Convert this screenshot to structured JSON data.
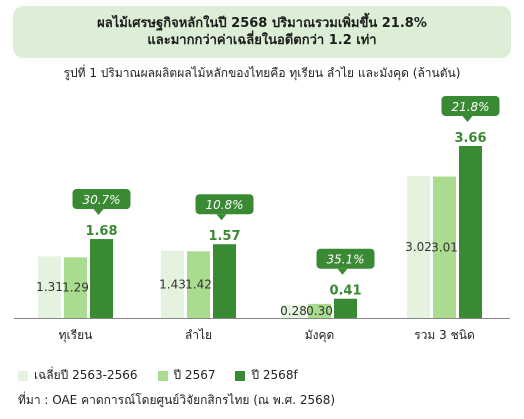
{
  "banner": {
    "line1": "ผลไม้เศรษฐกิจหลักในปี 2568 ปริมาณรวมเพิ่มขึ้น 21.8%",
    "line2": "และมากกว่าค่าเฉลี่ยในอดีตกว่า 1.2 เท่า"
  },
  "source": "ที่มา : OAE คาดการณ์โดยศูนย์วิจัยกสิกรไทย (ณ พ.ศ. 2568)",
  "colors": {
    "banner_bg": "#dcefd6",
    "series": [
      "#e4f3de",
      "#a9dc8f",
      "#3a8a34"
    ],
    "callout": "#3a8a34"
  },
  "chart_data": {
    "type": "bar",
    "title": "รูปที่ 1 ปริมาณผลผลิตผลไม้หลักของไทยคือ ทุเรียน ลำไย และมังคุด (ล้านตัน)",
    "categories": [
      "ทุเรียน",
      "ลำไย",
      "มังคุด",
      "รวม 3 ชนิด"
    ],
    "series": [
      {
        "name": "เฉลี่ยปี 2563-2566",
        "values": [
          1.31,
          1.43,
          0.28,
          3.02
        ]
      },
      {
        "name": "ปี 2567",
        "values": [
          1.29,
          1.42,
          0.3,
          3.01
        ]
      },
      {
        "name": "ปี 2568f",
        "values": [
          1.68,
          1.57,
          0.41,
          3.66
        ]
      }
    ],
    "value_labels": [
      [
        "1.31",
        "1.43",
        "0.28",
        "3.02"
      ],
      [
        "1.29",
        "1.42",
        "0.30",
        "3.01"
      ],
      [
        "1.68",
        "1.57",
        "0.41",
        "3.66"
      ]
    ],
    "callouts": [
      "30.7%",
      "10.8%",
      "35.1%",
      "21.8%"
    ],
    "legend_position": "bottom-left",
    "grid": false
  }
}
